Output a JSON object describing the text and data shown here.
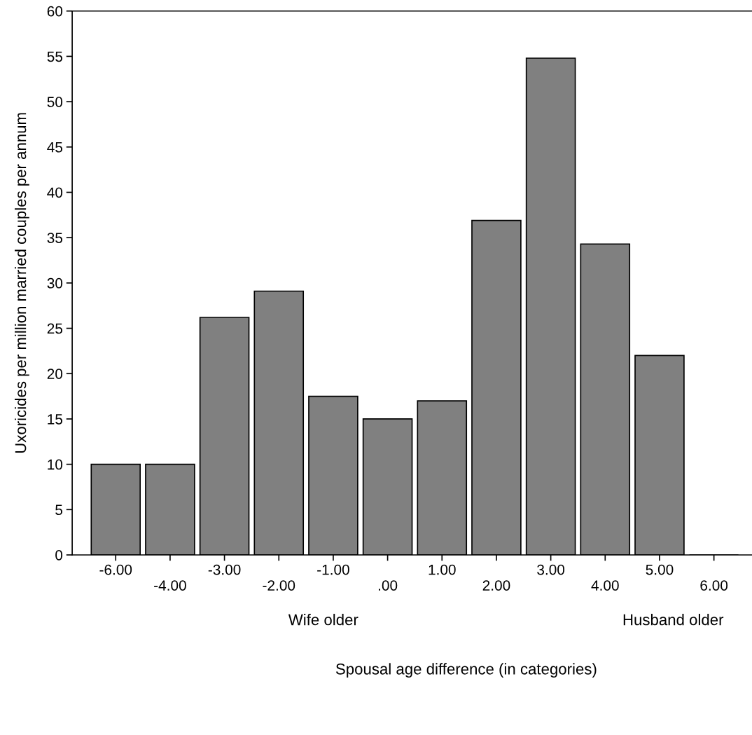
{
  "chart_data": {
    "type": "bar",
    "ylabel": "Uxoricides per million married couples per annum",
    "categories": [
      "-6.00",
      "-4.00",
      "-3.00",
      "-2.00",
      "-1.00",
      ".00",
      "1.00",
      "2.00",
      "3.00",
      "4.00",
      "5.00",
      "6.00"
    ],
    "values": [
      10,
      10,
      26.2,
      29.1,
      17.5,
      15.0,
      17.0,
      36.9,
      54.8,
      34.3,
      22.0,
      0
    ],
    "color": "#808080",
    "ylim": [
      0,
      60
    ],
    "yticks": [
      0,
      5,
      10,
      15,
      20,
      25,
      30,
      35,
      40,
      45,
      50,
      55,
      60
    ],
    "annotations": [
      "Wife older",
      "Husband older",
      "Spousal age difference (in categories)"
    ],
    "grid": false,
    "legend": false
  }
}
